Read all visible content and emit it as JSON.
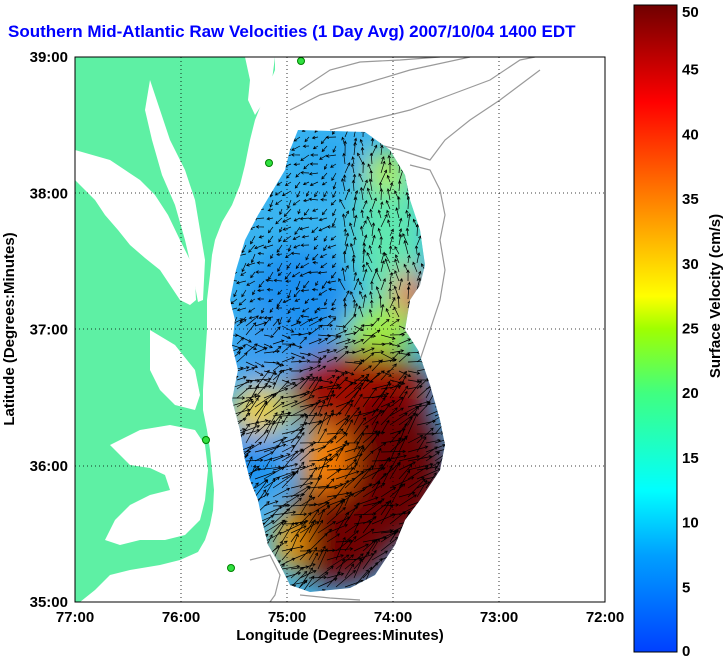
{
  "title": "Southern Mid-Atlantic Raw Velocities (1 Day Avg) 2007/10/04 1400 EDT",
  "chart_data": {
    "type": "heatmap",
    "title": "Southern Mid-Atlantic Raw Velocities (1 Day Avg) 2007/10/04 1400 EDT",
    "xlabel": "Longitude (Degrees:Minutes)",
    "ylabel": "Latitude (Degrees:Minutes)",
    "x_ticks": [
      "77:00",
      "76:00",
      "75:00",
      "74:00",
      "73:00",
      "72:00"
    ],
    "y_ticks": [
      "39:00",
      "38:00",
      "37:00",
      "36:00",
      "35:00"
    ],
    "xlim": [
      -77,
      -72
    ],
    "ylim": [
      35,
      39
    ],
    "grid": true,
    "colorbar": {
      "label": "Surface Velocity (cm/s)",
      "ticks": [
        0,
        5,
        10,
        15,
        20,
        25,
        30,
        35,
        40,
        45,
        50
      ],
      "range": [
        0,
        50
      ]
    },
    "station_markers": [
      {
        "lon": -75.1,
        "lat": 39.0
      },
      {
        "lon": -75.1,
        "lat": 38.22
      },
      {
        "lon": -75.7,
        "lat": 36.18
      },
      {
        "lon": -75.5,
        "lat": 35.25
      }
    ]
  },
  "colors": {
    "land": "#5ef0a4",
    "title": "#0000ff"
  }
}
